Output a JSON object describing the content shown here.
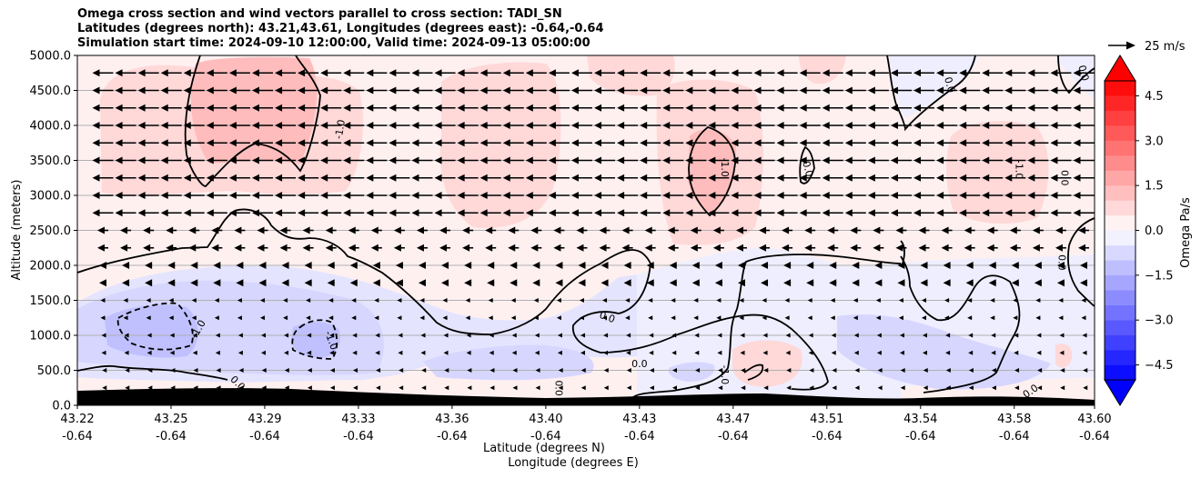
{
  "chart_data": {
    "type": "contour",
    "title_lines": [
      "Omega cross section and wind vectors parallel to cross section: TADI_SN",
      "Latitudes (degrees north): 43.21,43.61, Longitudes (degrees east): -0.64,-0.64",
      "Simulation start time: 2024-09-10 12:00:00, Valid time: 2024-09-13 05:00:00"
    ],
    "xlabel": "Latitude (degrees N)",
    "xlabel2": "Longitude (degrees E)",
    "ylabel": "Altitude (meters)",
    "xlim": [
      43.22,
      43.6
    ],
    "ylim": [
      0,
      5000
    ],
    "x_ticks": [
      {
        "lat": "43.22",
        "lon": "-0.64",
        "v": 43.22
      },
      {
        "lat": "43.25",
        "lon": "-0.64",
        "v": 43.255
      },
      {
        "lat": "43.29",
        "lon": "-0.64",
        "v": 43.29
      },
      {
        "lat": "43.33",
        "lon": "-0.64",
        "v": 43.325
      },
      {
        "lat": "43.36",
        "lon": "-0.64",
        "v": 43.36
      },
      {
        "lat": "43.40",
        "lon": "-0.64",
        "v": 43.395
      },
      {
        "lat": "43.43",
        "lon": "-0.64",
        "v": 43.43
      },
      {
        "lat": "43.47",
        "lon": "-0.64",
        "v": 43.465
      },
      {
        "lat": "43.51",
        "lon": "-0.64",
        "v": 43.5
      },
      {
        "lat": "43.54",
        "lon": "-0.64",
        "v": 43.535
      },
      {
        "lat": "43.58",
        "lon": "-0.64",
        "v": 43.57
      },
      {
        "lat": "43.60",
        "lon": "-0.64",
        "v": 43.6
      }
    ],
    "y_ticks": [
      {
        "label": "0.0",
        "v": 0
      },
      {
        "label": "500.0",
        "v": 500
      },
      {
        "label": "1000.0",
        "v": 1000
      },
      {
        "label": "1500.0",
        "v": 1500
      },
      {
        "label": "2000.0",
        "v": 2000
      },
      {
        "label": "2500.0",
        "v": 2500
      },
      {
        "label": "3000.0",
        "v": 3000
      },
      {
        "label": "3500.0",
        "v": 3500
      },
      {
        "label": "4000.0",
        "v": 4000
      },
      {
        "label": "4500.0",
        "v": 4500
      },
      {
        "label": "5000.0",
        "v": 5000
      }
    ],
    "grid": "horizontal",
    "colorbar": {
      "label": "Omega Pa/s",
      "range": [
        -5,
        5
      ],
      "levels": 20,
      "extend": "both",
      "ticks": [
        {
          "label": "4.5",
          "v": 4.5
        },
        {
          "label": "3.0",
          "v": 3.0
        },
        {
          "label": "1.5",
          "v": 1.5
        },
        {
          "label": "0.0",
          "v": 0.0
        },
        {
          "label": "−1.5",
          "v": -1.5
        },
        {
          "label": "−3.0",
          "v": -3.0
        },
        {
          "label": "−4.5",
          "v": -4.5
        }
      ],
      "negative_color": "#0000ff",
      "positive_color": "#ff0000"
    },
    "wind_key": {
      "label": "25 m/s",
      "value": 25
    },
    "contour_labels": [
      {
        "text": "-1.0",
        "x": 43.318,
        "y": 3945,
        "rot": -80
      },
      {
        "text": "-1.0",
        "x": 43.462,
        "y": 3400,
        "rot": 90
      },
      {
        "text": "0.0",
        "x": 43.493,
        "y": 3380,
        "rot": 75
      },
      {
        "text": "0.0",
        "x": 43.546,
        "y": 4580,
        "rot": 75
      },
      {
        "text": "0.0",
        "x": 43.596,
        "y": 4750,
        "rot": 75
      },
      {
        "text": "-1.0",
        "x": 43.572,
        "y": 3370,
        "rot": 90
      },
      {
        "text": "0.0",
        "x": 43.589,
        "y": 3250,
        "rot": 90
      },
      {
        "text": "0.0",
        "x": 43.588,
        "y": 2040,
        "rot": 90
      },
      {
        "text": "-1.0",
        "x": 43.265,
        "y": 1090,
        "rot": -60
      },
      {
        "text": "-1.0",
        "x": 43.315,
        "y": 930,
        "rot": 70
      },
      {
        "text": "0.0",
        "x": 43.28,
        "y": 320,
        "rot": 45
      },
      {
        "text": "0.0",
        "x": 43.4,
        "y": 245,
        "rot": 90
      },
      {
        "text": "0.0",
        "x": 43.418,
        "y": 1265,
        "rot": 20
      },
      {
        "text": "0.0",
        "x": 43.43,
        "y": 600,
        "rot": 0
      },
      {
        "text": "-1.0",
        "x": 43.462,
        "y": 435,
        "rot": 90
      },
      {
        "text": "0.0",
        "x": 43.576,
        "y": 205,
        "rot": -35
      }
    ]
  }
}
